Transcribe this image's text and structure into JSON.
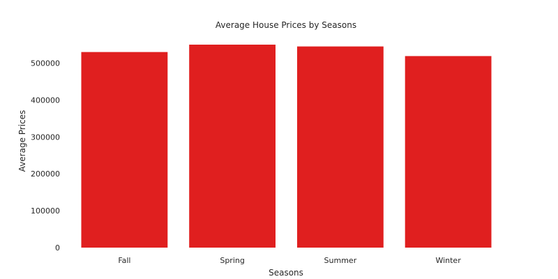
{
  "chart_data": {
    "type": "bar",
    "title": "Average House Prices by Seasons",
    "xlabel": "Seasons",
    "ylabel": "Average Prices",
    "categories": [
      "Fall",
      "Spring",
      "Summer",
      "Winter"
    ],
    "values": [
      530000,
      550000,
      545000,
      519000
    ],
    "ylim": [
      0,
      550000
    ],
    "yticks": [
      0,
      100000,
      200000,
      300000,
      400000,
      500000
    ],
    "ytick_labels": [
      "0",
      "100000",
      "200000",
      "300000",
      "400000",
      "500000"
    ],
    "grid": false,
    "colors": {
      "bar": "#e01f1f",
      "text": "#262626",
      "background": "#ffffff"
    }
  }
}
